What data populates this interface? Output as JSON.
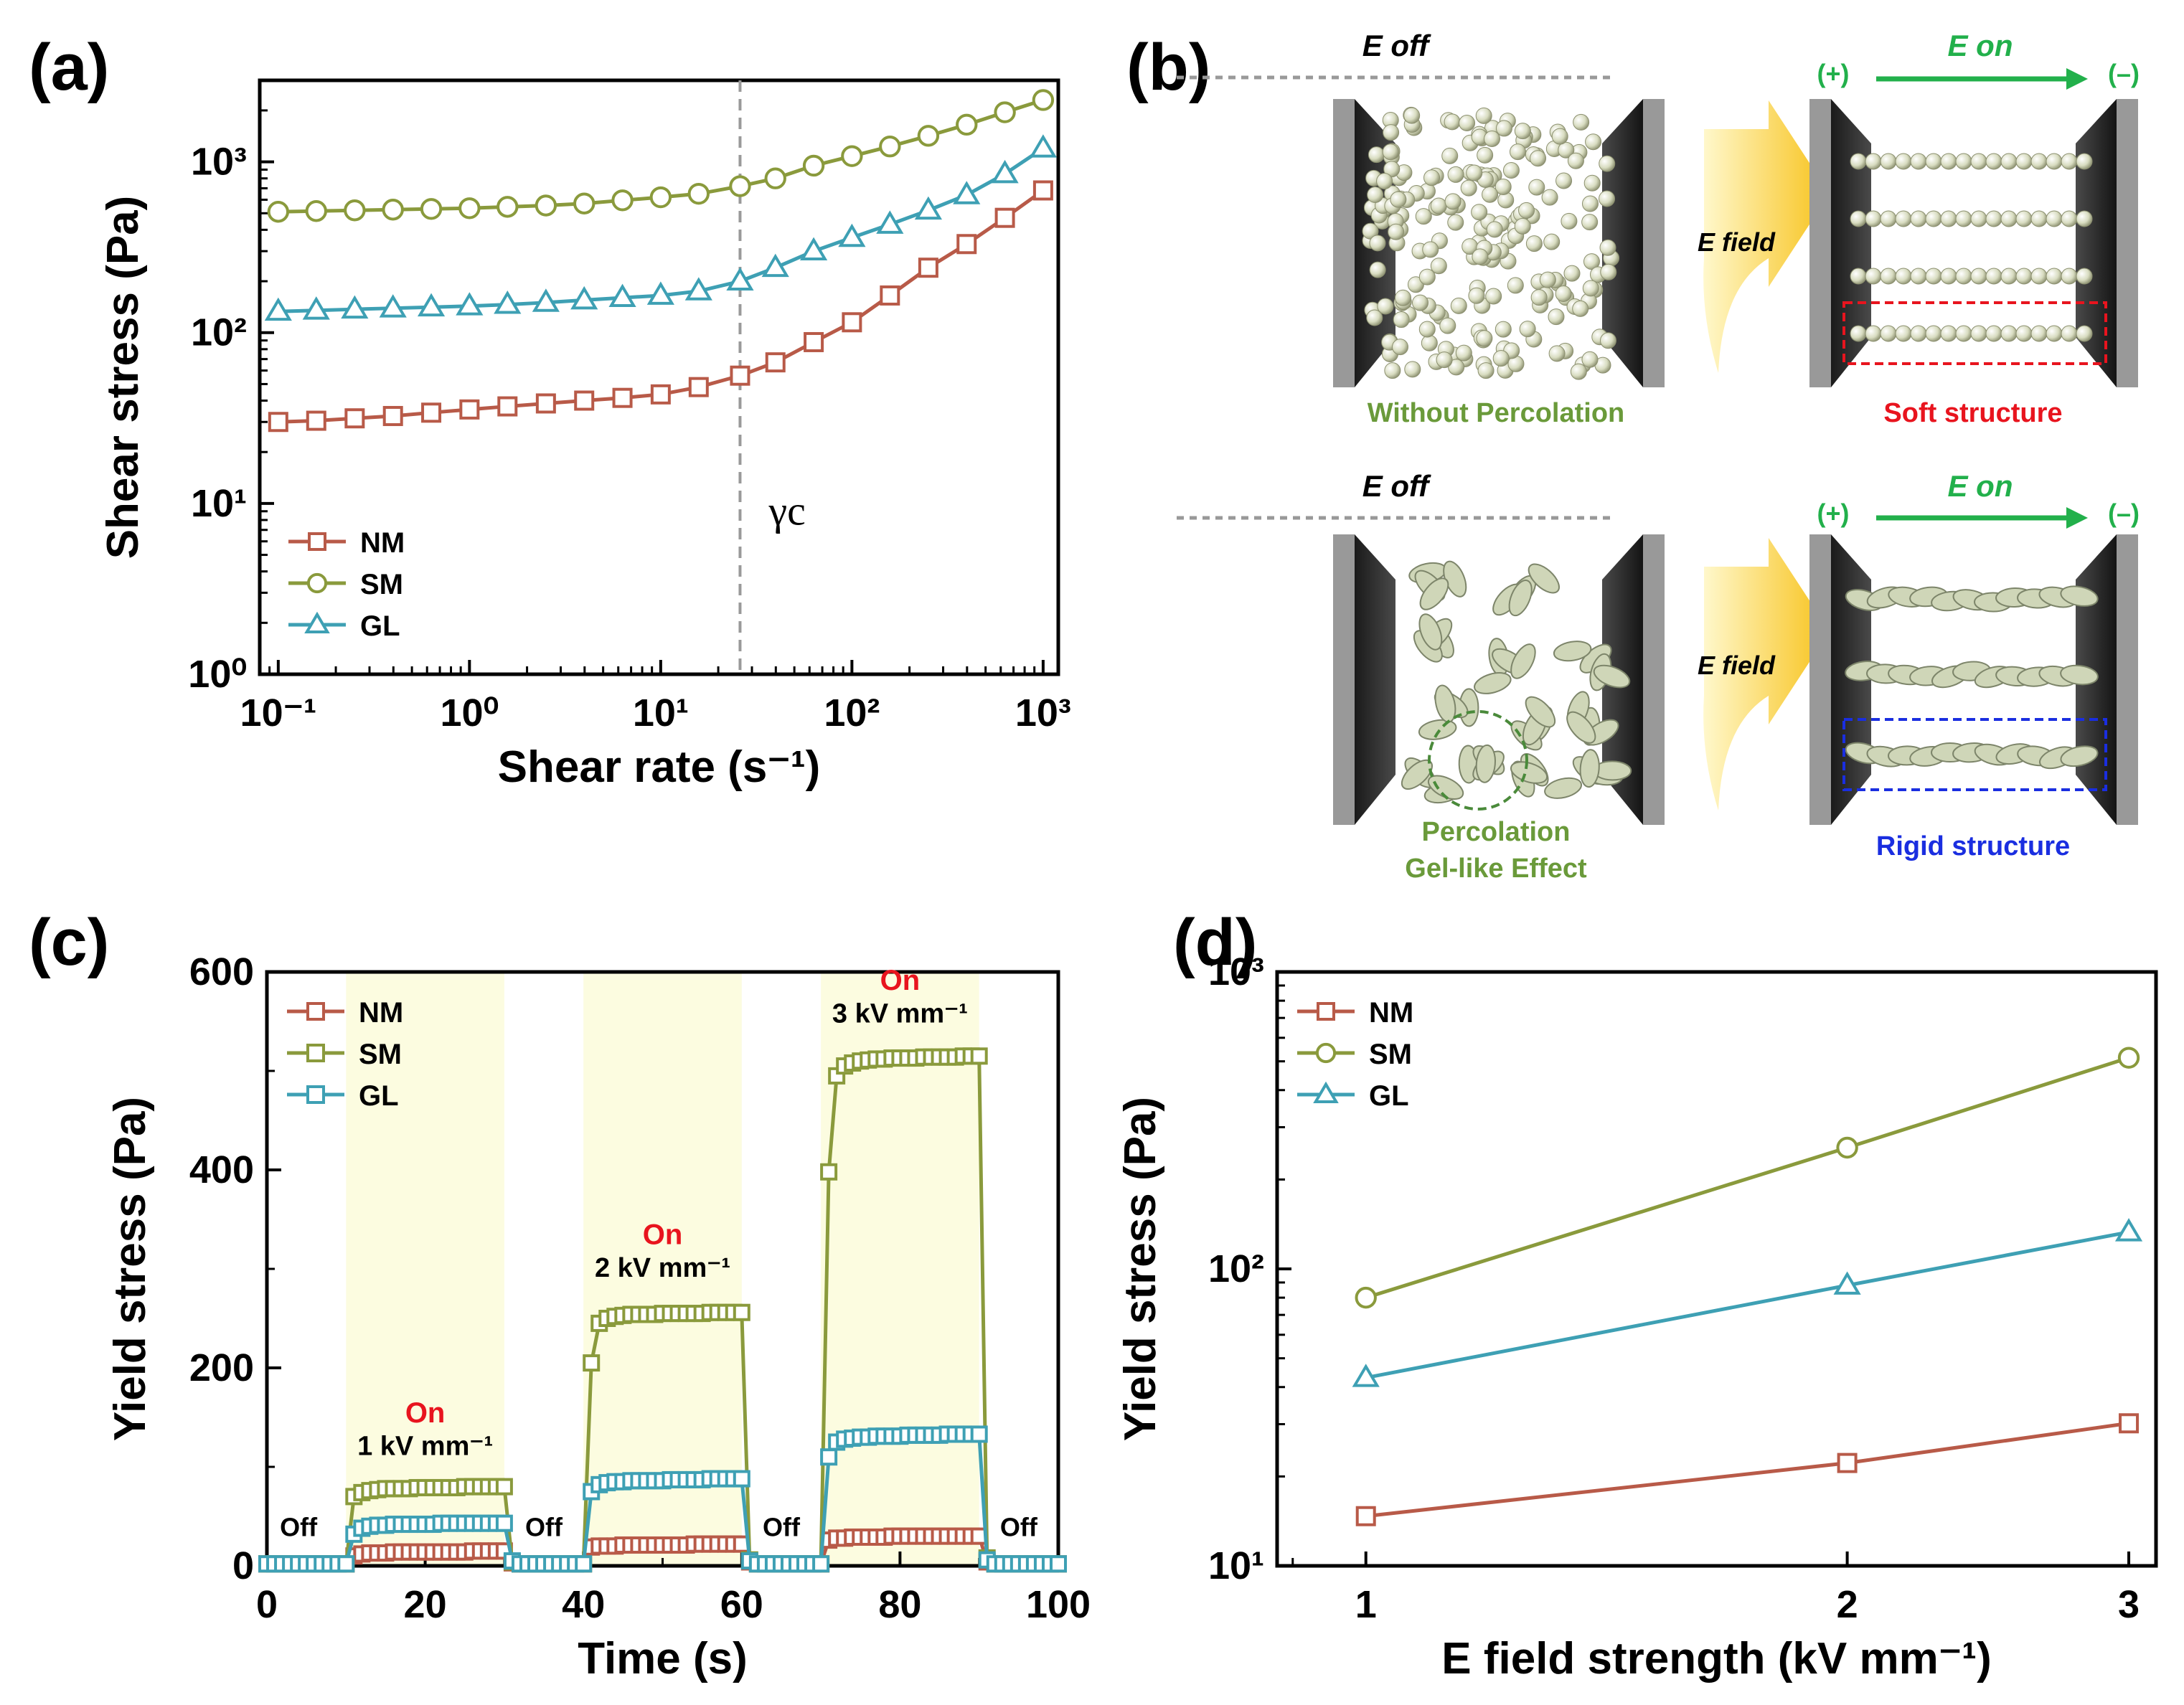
{
  "panels": {
    "a": {
      "label": "(a)"
    },
    "b": {
      "label": "(b)"
    },
    "c": {
      "label": "(c)"
    },
    "d": {
      "label": "(d)"
    }
  },
  "diagram": {
    "e_off": "E off",
    "e_on": "E on",
    "e_field": "E field",
    "plus": "(+)",
    "minus": "(–)",
    "without_percolation": "Without Percolation",
    "soft_structure": "Soft structure",
    "percolation_line1": "Percolation",
    "percolation_line2": "Gel-like Effect",
    "rigid_structure": "Rigid structure",
    "color_green_text": "#6a9a3a",
    "color_soft": "#e8141e",
    "color_rigid": "#1a2ee0",
    "color_arrow": "#22b04b"
  },
  "chart_data": [
    {
      "id": "a",
      "type": "line",
      "xlabel": "Shear rate (s⁻¹)",
      "ylabel": "Shear stress (Pa)",
      "xscale": "log",
      "yscale": "log",
      "xlim": [
        0.08,
        1200
      ],
      "ylim": [
        1,
        3000
      ],
      "xticks": [
        0.1,
        1,
        10,
        100,
        1000
      ],
      "xtick_labels": [
        "10⁻¹",
        "10⁰",
        "10¹",
        "10²",
        "10³"
      ],
      "yticks": [
        1,
        10,
        100,
        1000
      ],
      "ytick_labels": [
        "10⁰",
        "10¹",
        "10²",
        "10³"
      ],
      "annotation": {
        "text": "γc",
        "x": 26
      },
      "legend": "bottom-left",
      "x": [
        0.1,
        0.158,
        0.251,
        0.398,
        0.631,
        1,
        1.58,
        2.51,
        3.98,
        6.31,
        10,
        15.8,
        26,
        39.8,
        63.1,
        100,
        158,
        251,
        398,
        631,
        1000
      ],
      "series": [
        {
          "name": "NM",
          "color": "#b85a48",
          "marker": "square",
          "values": [
            30,
            30.5,
            31.5,
            32.5,
            34,
            35.5,
            37,
            38.5,
            40,
            41.5,
            43.5,
            48,
            56,
            67,
            88,
            115,
            165,
            240,
            330,
            470,
            680
          ]
        },
        {
          "name": "SM",
          "color": "#8a9a3c",
          "marker": "circle",
          "values": [
            510,
            515,
            520,
            525,
            530,
            535,
            545,
            555,
            570,
            595,
            620,
            650,
            720,
            800,
            950,
            1080,
            1230,
            1420,
            1650,
            1950,
            2300
          ]
        },
        {
          "name": "GL",
          "color": "#3ea0b4",
          "marker": "triangle",
          "values": [
            133,
            135,
            137,
            139,
            141,
            143,
            146,
            150,
            155,
            160,
            165,
            175,
            200,
            240,
            300,
            360,
            430,
            520,
            640,
            850,
            1200
          ]
        }
      ]
    },
    {
      "id": "c",
      "type": "line",
      "xlabel": "Time (s)",
      "ylabel": "Yield stress (Pa)",
      "xlim": [
        0,
        100
      ],
      "ylim": [
        0,
        600
      ],
      "xticks": [
        0,
        20,
        40,
        60,
        80,
        100
      ],
      "yticks": [
        0,
        200,
        400,
        600
      ],
      "legend": "top-left",
      "on_regions": [
        [
          10,
          30
        ],
        [
          40,
          60
        ],
        [
          70,
          90
        ]
      ],
      "region_color": "#fcfce0",
      "annotations": [
        {
          "text": "Off",
          "x": 4,
          "y": 30
        },
        {
          "text": "Off",
          "x": 35,
          "y": 30
        },
        {
          "text": "Off",
          "x": 65,
          "y": 30
        },
        {
          "text": "Off",
          "x": 95,
          "y": 30
        },
        {
          "text": "On",
          "x": 20,
          "y": 145,
          "color": "#e8141e"
        },
        {
          "text": "1 kV mm⁻¹",
          "x": 20,
          "y": 112
        },
        {
          "text": "On",
          "x": 50,
          "y": 325,
          "color": "#e8141e"
        },
        {
          "text": "2 kV mm⁻¹",
          "x": 50,
          "y": 292
        },
        {
          "text": "On",
          "x": 80,
          "y": 582,
          "color": "#e8141e"
        },
        {
          "text": "3 kV mm⁻¹",
          "x": 80,
          "y": 549
        }
      ],
      "x": [
        0,
        1,
        2,
        3,
        4,
        5,
        6,
        7,
        8,
        9,
        10,
        11,
        12,
        13,
        14,
        15,
        16,
        17,
        18,
        19,
        20,
        21,
        22,
        23,
        24,
        25,
        26,
        27,
        28,
        29,
        30,
        31,
        32,
        33,
        34,
        35,
        36,
        37,
        38,
        39,
        40,
        41,
        42,
        43,
        44,
        45,
        46,
        47,
        48,
        49,
        50,
        51,
        52,
        53,
        54,
        55,
        56,
        57,
        58,
        59,
        60,
        61,
        62,
        63,
        64,
        65,
        66,
        67,
        68,
        69,
        70,
        71,
        72,
        73,
        74,
        75,
        76,
        77,
        78,
        79,
        80,
        81,
        82,
        83,
        84,
        85,
        86,
        87,
        88,
        89,
        90,
        91,
        92,
        93,
        94,
        95,
        96,
        97,
        98,
        99,
        100
      ],
      "series": [
        {
          "name": "NM",
          "color": "#b85a48",
          "marker": "square",
          "values": [
            2,
            2,
            2,
            2,
            2,
            2,
            2,
            2,
            2,
            2,
            2,
            10,
            12,
            13,
            13,
            13,
            14,
            14,
            14,
            14,
            14,
            14,
            14,
            14,
            14,
            14,
            15,
            15,
            15,
            15,
            15,
            3,
            2,
            2,
            2,
            2,
            2,
            2,
            2,
            2,
            2,
            19,
            20,
            20,
            20,
            21,
            21,
            21,
            21,
            21,
            21,
            21,
            21,
            21,
            22,
            22,
            22,
            22,
            22,
            22,
            22,
            4,
            2,
            2,
            2,
            2,
            2,
            2,
            2,
            2,
            2,
            26,
            28,
            28,
            29,
            29,
            29,
            29,
            29,
            30,
            30,
            30,
            30,
            30,
            30,
            30,
            30,
            30,
            30,
            30,
            30,
            4,
            2,
            2,
            2,
            2,
            2,
            2,
            2,
            2,
            2
          ]
        },
        {
          "name": "SM",
          "color": "#8a9a3c",
          "marker": "square",
          "values": [
            2,
            2,
            2,
            2,
            2,
            2,
            2,
            2,
            2,
            2,
            2,
            70,
            74,
            76,
            77,
            78,
            78,
            78,
            78,
            79,
            79,
            79,
            79,
            79,
            79,
            80,
            80,
            80,
            80,
            80,
            80,
            4,
            2,
            2,
            2,
            2,
            2,
            2,
            2,
            2,
            2,
            205,
            245,
            250,
            252,
            253,
            254,
            254,
            254,
            254,
            255,
            255,
            255,
            255,
            255,
            255,
            256,
            256,
            256,
            256,
            256,
            6,
            2,
            2,
            2,
            2,
            2,
            2,
            2,
            2,
            2,
            398,
            495,
            505,
            508,
            510,
            511,
            512,
            512,
            513,
            513,
            513,
            513,
            514,
            514,
            514,
            514,
            514,
            515,
            515,
            515,
            8,
            2,
            2,
            2,
            2,
            2,
            2,
            2,
            2,
            2
          ]
        },
        {
          "name": "GL",
          "color": "#3ea0b4",
          "marker": "square",
          "values": [
            2,
            2,
            2,
            2,
            2,
            2,
            2,
            2,
            2,
            2,
            2,
            32,
            38,
            40,
            41,
            41,
            42,
            42,
            42,
            42,
            42,
            42,
            43,
            43,
            43,
            43,
            43,
            43,
            43,
            43,
            43,
            5,
            2,
            2,
            2,
            2,
            2,
            2,
            2,
            2,
            2,
            75,
            82,
            84,
            85,
            85,
            86,
            86,
            86,
            86,
            86,
            87,
            87,
            87,
            87,
            87,
            88,
            88,
            88,
            88,
            88,
            5,
            2,
            2,
            2,
            2,
            2,
            2,
            2,
            2,
            2,
            110,
            125,
            128,
            129,
            130,
            130,
            131,
            131,
            131,
            131,
            132,
            132,
            132,
            132,
            132,
            133,
            133,
            133,
            133,
            133,
            6,
            2,
            2,
            2,
            2,
            2,
            2,
            2,
            2,
            2
          ]
        }
      ]
    },
    {
      "id": "d",
      "type": "line",
      "xlabel": "E field strength (kV mm⁻¹)",
      "ylabel": "Yield stress (Pa)",
      "xscale": "log",
      "yscale": "log",
      "xlim": [
        0.88,
        3.12
      ],
      "ylim": [
        10,
        1000
      ],
      "xticks": [
        1,
        2,
        3
      ],
      "xtick_labels": [
        "1",
        "2",
        "3"
      ],
      "yticks": [
        10,
        100,
        1000
      ],
      "ytick_labels": [
        "10¹",
        "10²",
        "10³"
      ],
      "legend": "top-left",
      "x": [
        1,
        2,
        3
      ],
      "series": [
        {
          "name": "NM",
          "color": "#b85a48",
          "marker": "square",
          "values": [
            14.7,
            22.2,
            30.2
          ]
        },
        {
          "name": "SM",
          "color": "#8a9a3c",
          "marker": "circle",
          "values": [
            80,
            256,
            514
          ]
        },
        {
          "name": "GL",
          "color": "#3ea0b4",
          "marker": "triangle",
          "values": [
            43,
            88,
            133
          ]
        }
      ]
    }
  ]
}
